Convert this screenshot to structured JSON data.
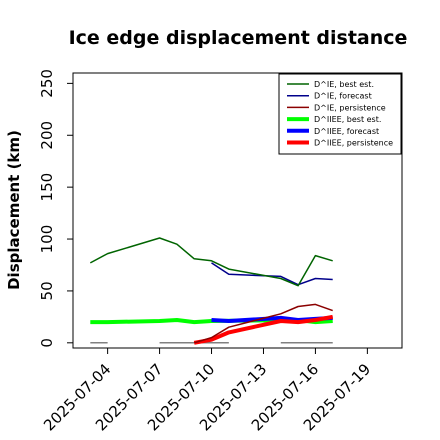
{
  "chart_data": {
    "type": "line",
    "title": "Ice edge displacement distance",
    "ylabel": "Displacement (km)",
    "xlabel": "",
    "xlim": [
      "2025-07-02",
      "2025-07-21"
    ],
    "ylim": [
      -5,
      260
    ],
    "yticks": [
      0,
      50,
      100,
      150,
      200,
      250
    ],
    "xticks": [
      "2025-07-04",
      "2025-07-07",
      "2025-07-10",
      "2025-07-13",
      "2025-07-16",
      "2025-07-19"
    ],
    "highlighted_tick": "2025-07-10",
    "highlight_color": "#228B22",
    "legend_position": "top-right",
    "grid": false,
    "legend": [
      {
        "label": "D^IE, best est.",
        "color": "#006400",
        "width": 1.5
      },
      {
        "label": "D^IE, forecast",
        "color": "#00008B",
        "width": 1.5
      },
      {
        "label": "D^IE, persistence",
        "color": "#8B0000",
        "width": 1.5
      },
      {
        "label": "D^IIEE, best est.",
        "color": "#00FF00",
        "width": 4
      },
      {
        "label": "D^IIEE, forecast",
        "color": "#0000FF",
        "width": 4
      },
      {
        "label": "D^IIEE, persistence",
        "color": "#FF0000",
        "width": 4
      }
    ],
    "series": [
      {
        "color": "#00FF00",
        "width": 4,
        "x": [
          "2025-07-03",
          "2025-07-04",
          "2025-07-07",
          "2025-07-08",
          "2025-07-09",
          "2025-07-10",
          "2025-07-15",
          "2025-07-16",
          "2025-07-17"
        ],
        "y": [
          20,
          20,
          21,
          22,
          20,
          21,
          22,
          20,
          21
        ]
      },
      {
        "color": "#0000FF",
        "width": 4,
        "x": [
          "2025-07-10",
          "2025-07-11",
          "2025-07-14",
          "2025-07-15",
          "2025-07-16",
          "2025-07-17"
        ],
        "y": [
          22,
          21,
          24,
          22,
          23,
          24
        ]
      },
      {
        "color": "#FF0000",
        "width": 4,
        "x": [
          "2025-07-09",
          "2025-07-10",
          "2025-07-11",
          "2025-07-14",
          "2025-07-15",
          "2025-07-16",
          "2025-07-17"
        ],
        "y": [
          0,
          3,
          10,
          21,
          20,
          22,
          25
        ]
      },
      {
        "color": "#8B0000",
        "width": 1.5,
        "x": [
          "2025-07-09",
          "2025-07-10",
          "2025-07-11",
          "2025-07-14",
          "2025-07-15",
          "2025-07-16",
          "2025-07-17"
        ],
        "y": [
          0,
          5,
          15,
          28,
          35,
          37,
          31
        ]
      },
      {
        "color": "#00008B",
        "width": 1.5,
        "x": [
          "2025-07-10",
          "2025-07-11",
          "2025-07-14",
          "2025-07-15",
          "2025-07-16",
          "2025-07-17"
        ],
        "y": [
          77,
          66,
          64,
          56,
          62,
          61
        ]
      },
      {
        "color": "#006400",
        "width": 1.5,
        "x": [
          "2025-07-03",
          "2025-07-04",
          "2025-07-07",
          "2025-07-08",
          "2025-07-09",
          "2025-07-10",
          "2025-07-11",
          "2025-07-14",
          "2025-07-15",
          "2025-07-16",
          "2025-07-17"
        ],
        "y": [
          77,
          86,
          101,
          95,
          81,
          79,
          71,
          62,
          55,
          84,
          79
        ]
      }
    ],
    "zero_segments": [
      {
        "color": "#808080",
        "x": [
          "2025-07-03",
          "2025-07-04"
        ],
        "y": 0
      },
      {
        "color": "#808080",
        "x": [
          "2025-07-07",
          "2025-07-11"
        ],
        "y": 0
      },
      {
        "color": "#808080",
        "x": [
          "2025-07-14",
          "2025-07-17"
        ],
        "y": 0
      }
    ]
  }
}
